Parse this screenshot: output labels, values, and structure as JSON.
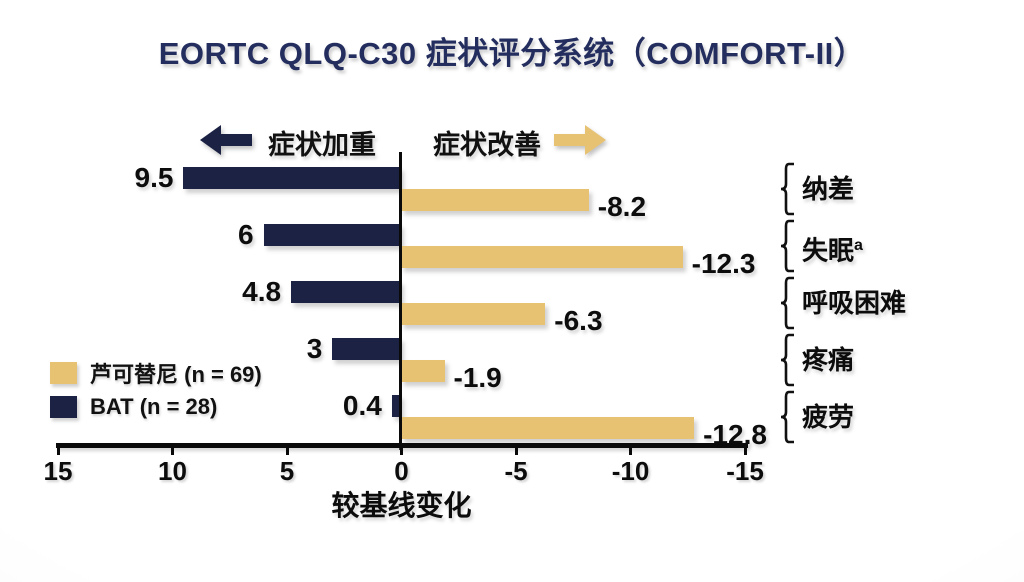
{
  "title": "EORTC QLQ-C30 症状评分系统（COMFORT-II）",
  "direction_labels": {
    "worsening": "症状加重",
    "improvement": "症状改善"
  },
  "legend": {
    "items": [
      {
        "label": "芦可替尼 (n = 69)",
        "color": "#e7c273"
      },
      {
        "label": "BAT (n = 28)",
        "color": "#1b2244"
      }
    ]
  },
  "chart_data": {
    "type": "bar",
    "orientation": "horizontal",
    "title": "EORTC QLQ-C30 症状评分系统（COMFORT-II）",
    "xlabel": "较基线变化",
    "x_ticks": [
      "15",
      "10",
      "5",
      "0",
      "-5",
      "-10",
      "-15"
    ],
    "xlim": [
      15,
      -15
    ],
    "x_axis_reversed": true,
    "grid": false,
    "legend_position": "middle-left",
    "categories": [
      {
        "label": "纳差",
        "sup": ""
      },
      {
        "label": "失眠",
        "sup": "a"
      },
      {
        "label": "呼吸困难",
        "sup": ""
      },
      {
        "label": "疼痛",
        "sup": ""
      },
      {
        "label": "疲劳",
        "sup": ""
      }
    ],
    "series": [
      {
        "name": "BAT (n = 28)",
        "color": "#1b2244",
        "values": [
          9.5,
          6,
          4.8,
          3,
          0.4
        ]
      },
      {
        "name": "芦可替尼 (n = 69)",
        "color": "#e7c273",
        "values": [
          -8.2,
          -12.3,
          -6.3,
          -1.9,
          -12.8
        ]
      }
    ]
  },
  "colors": {
    "navy": "#1b2244",
    "tan": "#e7c273",
    "title_text": "#232d5e",
    "axis": "#0a0a0a"
  }
}
